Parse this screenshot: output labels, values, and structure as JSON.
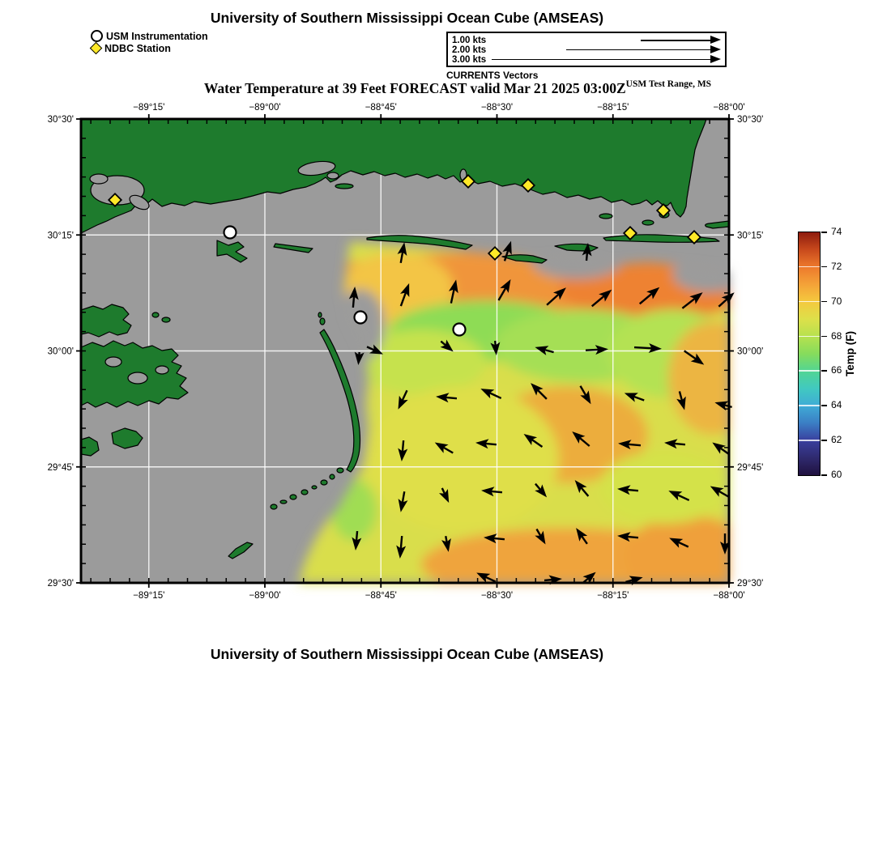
{
  "header": {
    "title": "University of Southern Mississippi Ocean Cube (AMSEAS)"
  },
  "footer": {
    "title": "University of Southern Mississippi Ocean Cube (AMSEAS)"
  },
  "subtitle": {
    "main": "Water Temperature at 39 Feet FORECAST valid Mar 21 2025 03:00Z",
    "sup": "USM Test Range, MS"
  },
  "legend": {
    "usm_label": "USM Instrumentation",
    "ndbc_label": "NDBC Station"
  },
  "vector_key": {
    "caption": "CURRENTS Vectors",
    "rows": [
      {
        "label": "1.00 kts",
        "length": 99
      },
      {
        "label": "2.00 kts",
        "length": 191
      },
      {
        "label": "3.00 kts",
        "length": 283
      }
    ]
  },
  "colorbar": {
    "title": "Temp (F)",
    "min": 60,
    "max": 74,
    "ticks": [
      60,
      62,
      64,
      66,
      68,
      70,
      72,
      74
    ],
    "stops": [
      {
        "v": 60,
        "c": "#20113f"
      },
      {
        "v": 61,
        "c": "#2f2a6e"
      },
      {
        "v": 62,
        "c": "#3a3f9e"
      },
      {
        "v": 63,
        "c": "#3b7ec4"
      },
      {
        "v": 64,
        "c": "#3fabd6"
      },
      {
        "v": 65,
        "c": "#41c9c0"
      },
      {
        "v": 66,
        "c": "#52d593"
      },
      {
        "v": 67,
        "c": "#86dc5c"
      },
      {
        "v": 68,
        "c": "#b6e14f"
      },
      {
        "v": 69,
        "c": "#dde04a"
      },
      {
        "v": 70,
        "c": "#f4c93e"
      },
      {
        "v": 71,
        "c": "#f4a238"
      },
      {
        "v": 72,
        "c": "#ed7a2c"
      },
      {
        "v": 73,
        "c": "#c8491c"
      },
      {
        "v": 74,
        "c": "#8e1c0e"
      }
    ]
  },
  "map_style": {
    "water_color": "#9b9b9b",
    "land_color": "#1e7b2d",
    "grid_color": "rgba(255,255,255,0.85)",
    "ndbc_color": "#ffe928",
    "usm_color": "#ffffff"
  },
  "chart_data": {
    "type": "heatmap",
    "title": "Water Temperature at 39 Feet FORECAST valid Mar 21 2025 03:00Z",
    "legend_position": "top-left",
    "grid": true,
    "lon_range": [
      -89.4,
      -88.0
    ],
    "lat_range": [
      29.5,
      30.5
    ],
    "temp_range_f": [
      60,
      74
    ],
    "x_ticks": [
      {
        "label": "−89°15'",
        "pos": 83.75
      },
      {
        "label": "−89°00'",
        "pos": 227
      },
      {
        "label": "−88°45'",
        "pos": 370.25
      },
      {
        "label": "−88°30'",
        "pos": 513.5
      },
      {
        "label": "−88°15'",
        "pos": 656.75
      },
      {
        "label": "−88°00'",
        "pos": 800
      }
    ],
    "y_ticks": [
      {
        "label": "30°30'",
        "pos": 0
      },
      {
        "label": "30°15'",
        "pos": 143.25
      },
      {
        "label": "30°00'",
        "pos": 286.5
      },
      {
        "label": "29°45'",
        "pos": 429.75
      },
      {
        "label": "29°30'",
        "pos": 573
      }
    ],
    "minor_tick_step": 23.875,
    "minor_tick_x_start": 12.125,
    "stations": {
      "usm": [
        [
          184,
          140
        ],
        [
          345,
          245
        ],
        [
          467,
          260
        ]
      ],
      "ndbc": [
        [
          42,
          100
        ],
        [
          478,
          77
        ],
        [
          552,
          82
        ],
        [
          511,
          166
        ],
        [
          719,
          113
        ],
        [
          678,
          141
        ],
        [
          757,
          146
        ]
      ]
    },
    "field_base_color": "#d9de4b",
    "field_region": "332,152 420,158 470,163 520,168 560,175 612,170 652,181 700,177 757,183 800,188 800,573 268,573 278,543 290,518 303,498 318,480 328,462 336,448 348,430 352,408 355,383 352,353 355,323 352,293 345,273 332,248 325,213 328,183",
    "temp_blobs": [
      [
        540,
        205,
        280,
        42,
        "#f0953a"
      ],
      [
        710,
        208,
        120,
        40,
        "#ee8230"
      ],
      [
        390,
        210,
        70,
        45,
        "#f3c544"
      ],
      [
        500,
        262,
        120,
        38,
        "#8edc55"
      ],
      [
        620,
        280,
        110,
        45,
        "#a5df55"
      ],
      [
        730,
        290,
        80,
        55,
        "#b4e253"
      ],
      [
        420,
        300,
        80,
        40,
        "#c6e24e"
      ],
      [
        600,
        390,
        100,
        60,
        "#ecad3e"
      ],
      [
        470,
        420,
        120,
        90,
        "#dfdf48"
      ],
      [
        600,
        550,
        180,
        45,
        "#efa43c"
      ],
      [
        750,
        540,
        80,
        50,
        "#efa03a"
      ],
      [
        780,
        320,
        55,
        70,
        "#ecb542"
      ],
      [
        720,
        455,
        80,
        45,
        "#d4e24a"
      ],
      [
        337,
        483,
        28,
        38,
        "#a0dd52"
      ],
      [
        345,
        255,
        30,
        45,
        "#9b9b9b"
      ],
      [
        612,
        178,
        55,
        20,
        "#9b9b9b"
      ],
      [
        775,
        192,
        45,
        22,
        "#9b9b9b"
      ],
      [
        800,
        170,
        30,
        20,
        "#9b9b9b"
      ]
    ],
    "currents": [
      [
        397,
        165,
        -80,
        26
      ],
      [
        527,
        163,
        -72,
        26
      ],
      [
        625,
        164,
        -85,
        22
      ],
      [
        337,
        220,
        -85,
        26
      ],
      [
        400,
        217,
        -70,
        30
      ],
      [
        460,
        213,
        -78,
        30
      ],
      [
        523,
        211,
        -60,
        30
      ],
      [
        587,
        219,
        -42,
        32
      ],
      [
        643,
        221,
        -40,
        32
      ],
      [
        702,
        218,
        -40,
        32
      ],
      [
        755,
        224,
        -38,
        32
      ],
      [
        797,
        223,
        -42,
        26
      ],
      [
        363,
        286,
        25,
        22
      ],
      [
        452,
        281,
        40,
        20
      ],
      [
        512,
        283,
        85,
        18
      ],
      [
        572,
        285,
        195,
        24
      ],
      [
        637,
        285,
        -3,
        28
      ],
      [
        700,
        283,
        3,
        34
      ],
      [
        757,
        295,
        35,
        30
      ],
      [
        343,
        296,
        95,
        16
      ],
      [
        397,
        347,
        115,
        26
      ],
      [
        451,
        344,
        185,
        26
      ],
      [
        506,
        339,
        205,
        28
      ],
      [
        565,
        336,
        225,
        28
      ],
      [
        623,
        341,
        60,
        26
      ],
      [
        683,
        343,
        200,
        26
      ],
      [
        742,
        348,
        75,
        24
      ],
      [
        793,
        353,
        195,
        22
      ],
      [
        397,
        410,
        95,
        26
      ],
      [
        448,
        406,
        210,
        26
      ],
      [
        500,
        401,
        185,
        26
      ],
      [
        558,
        397,
        215,
        28
      ],
      [
        617,
        395,
        220,
        28
      ],
      [
        677,
        402,
        185,
        28
      ],
      [
        733,
        401,
        185,
        26
      ],
      [
        790,
        407,
        215,
        26
      ],
      [
        397,
        473,
        100,
        26
      ],
      [
        450,
        465,
        65,
        20
      ],
      [
        507,
        460,
        185,
        26
      ],
      [
        568,
        459,
        50,
        22
      ],
      [
        618,
        456,
        230,
        26
      ],
      [
        675,
        458,
        185,
        26
      ],
      [
        738,
        465,
        205,
        28
      ],
      [
        788,
        460,
        210,
        26
      ],
      [
        340,
        521,
        95,
        24
      ],
      [
        395,
        529,
        95,
        28
      ],
      [
        452,
        525,
        80,
        20
      ],
      [
        510,
        518,
        185,
        26
      ],
      [
        568,
        516,
        60,
        22
      ],
      [
        618,
        515,
        235,
        24
      ],
      [
        675,
        516,
        185,
        26
      ],
      [
        738,
        523,
        205,
        26
      ],
      [
        795,
        525,
        90,
        26
      ],
      [
        500,
        566,
        205,
        26
      ],
      [
        583,
        569,
        -5,
        22
      ],
      [
        628,
        566,
        -40,
        20
      ],
      [
        683,
        569,
        -15,
        22
      ]
    ]
  }
}
